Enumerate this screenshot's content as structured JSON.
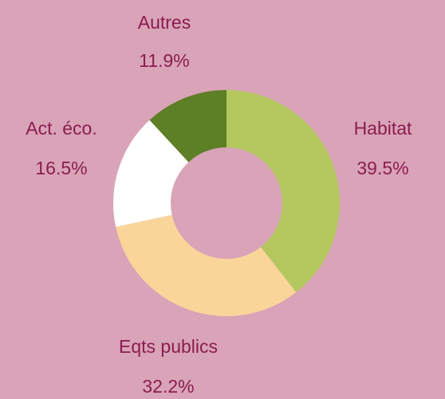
{
  "chart_data": {
    "type": "donut",
    "categories": [
      "Habitat",
      "Eqts publics",
      "Act. éco.",
      "Autres"
    ],
    "values": [
      39.5,
      32.2,
      16.5,
      11.9
    ],
    "value_labels": [
      "39.5%",
      "32.2%",
      "16.5%",
      "11.9%"
    ],
    "colors": [
      "#b3c75e",
      "#fad59a",
      "#ffffff",
      "#5d7f25"
    ]
  }
}
